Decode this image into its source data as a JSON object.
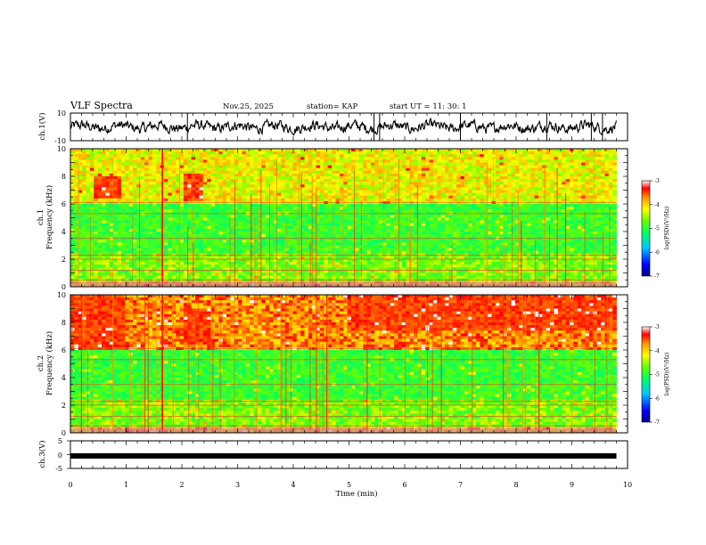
{
  "header": {
    "title": "VLF Spectra",
    "date": "Nov.25, 2025",
    "station": "station= KAP",
    "start_ut": "start  UT  =   11: 30: 1"
  },
  "chart_data": [
    {
      "type": "line",
      "panel": "ch1-waveform",
      "ylabel": "ch.1(V)",
      "ylim": [
        -10,
        10
      ],
      "ytick_labels": [
        "10",
        "-10"
      ],
      "x_range_min": [
        0,
        9.8
      ],
      "baseline_v": 0,
      "amplitude_v": [
        -6,
        6
      ]
    },
    {
      "type": "heatmap",
      "panel": "ch1-spectrogram",
      "ylabel": "ch.1\nFrequency  (kHz)",
      "ylim": [
        0,
        10
      ],
      "yticks": [
        0,
        2,
        4,
        6,
        8,
        10
      ],
      "x_range_min": [
        0,
        9.8
      ],
      "colorbar": {
        "label": "log(PSD)(V²/Hz)",
        "range": [
          -7,
          -3
        ],
        "ticks": [
          "-3",
          "-4",
          "-5",
          "-6",
          "-7"
        ]
      },
      "features": {
        "intense_zones": [
          {
            "t_min": [
              0.4,
              0.9
            ],
            "f_khz": [
              6.5,
              8
            ]
          },
          {
            "t_min": [
              2.0,
              2.4
            ],
            "f_khz": [
              6.3,
              8.2
            ]
          }
        ],
        "quiet_band_khz": [
          2.5,
          6
        ]
      }
    },
    {
      "type": "heatmap",
      "panel": "ch2-spectrogram",
      "ylabel": "ch.2\nFrequency  (kHz)",
      "ylim": [
        0,
        10
      ],
      "yticks": [
        0,
        2,
        4,
        6,
        8,
        10
      ],
      "x_range_min": [
        0,
        9.8
      ],
      "colorbar": {
        "label": "log(PSD)(V²/Hz)",
        "range": [
          -7,
          -3
        ],
        "ticks": [
          "-3",
          "-4",
          "-5",
          "-6",
          "-7"
        ]
      },
      "features": {
        "intense_zones": [
          {
            "t_min": [
              0,
              1.0
            ],
            "f_khz": [
              6,
              10
            ]
          },
          {
            "t_min": [
              2.0,
              2.5
            ],
            "f_khz": [
              6.5,
              9
            ]
          },
          {
            "t_min": [
              5.0,
              9.8
            ],
            "f_khz": [
              7.5,
              10
            ]
          }
        ]
      }
    },
    {
      "type": "line",
      "panel": "ch3-waveform",
      "ylabel": "ch.3(V)",
      "ylim": [
        -5,
        5
      ],
      "ytick_labels": [
        "5",
        "0",
        "-5"
      ],
      "x_range_min": [
        0,
        9.8
      ],
      "level_v": -0.5
    }
  ],
  "xaxis": {
    "label": "Time  (min)",
    "ticks": [
      "0",
      "1",
      "2",
      "3",
      "4",
      "5",
      "6",
      "7",
      "8",
      "9",
      "10"
    ],
    "range": [
      0,
      10
    ]
  }
}
